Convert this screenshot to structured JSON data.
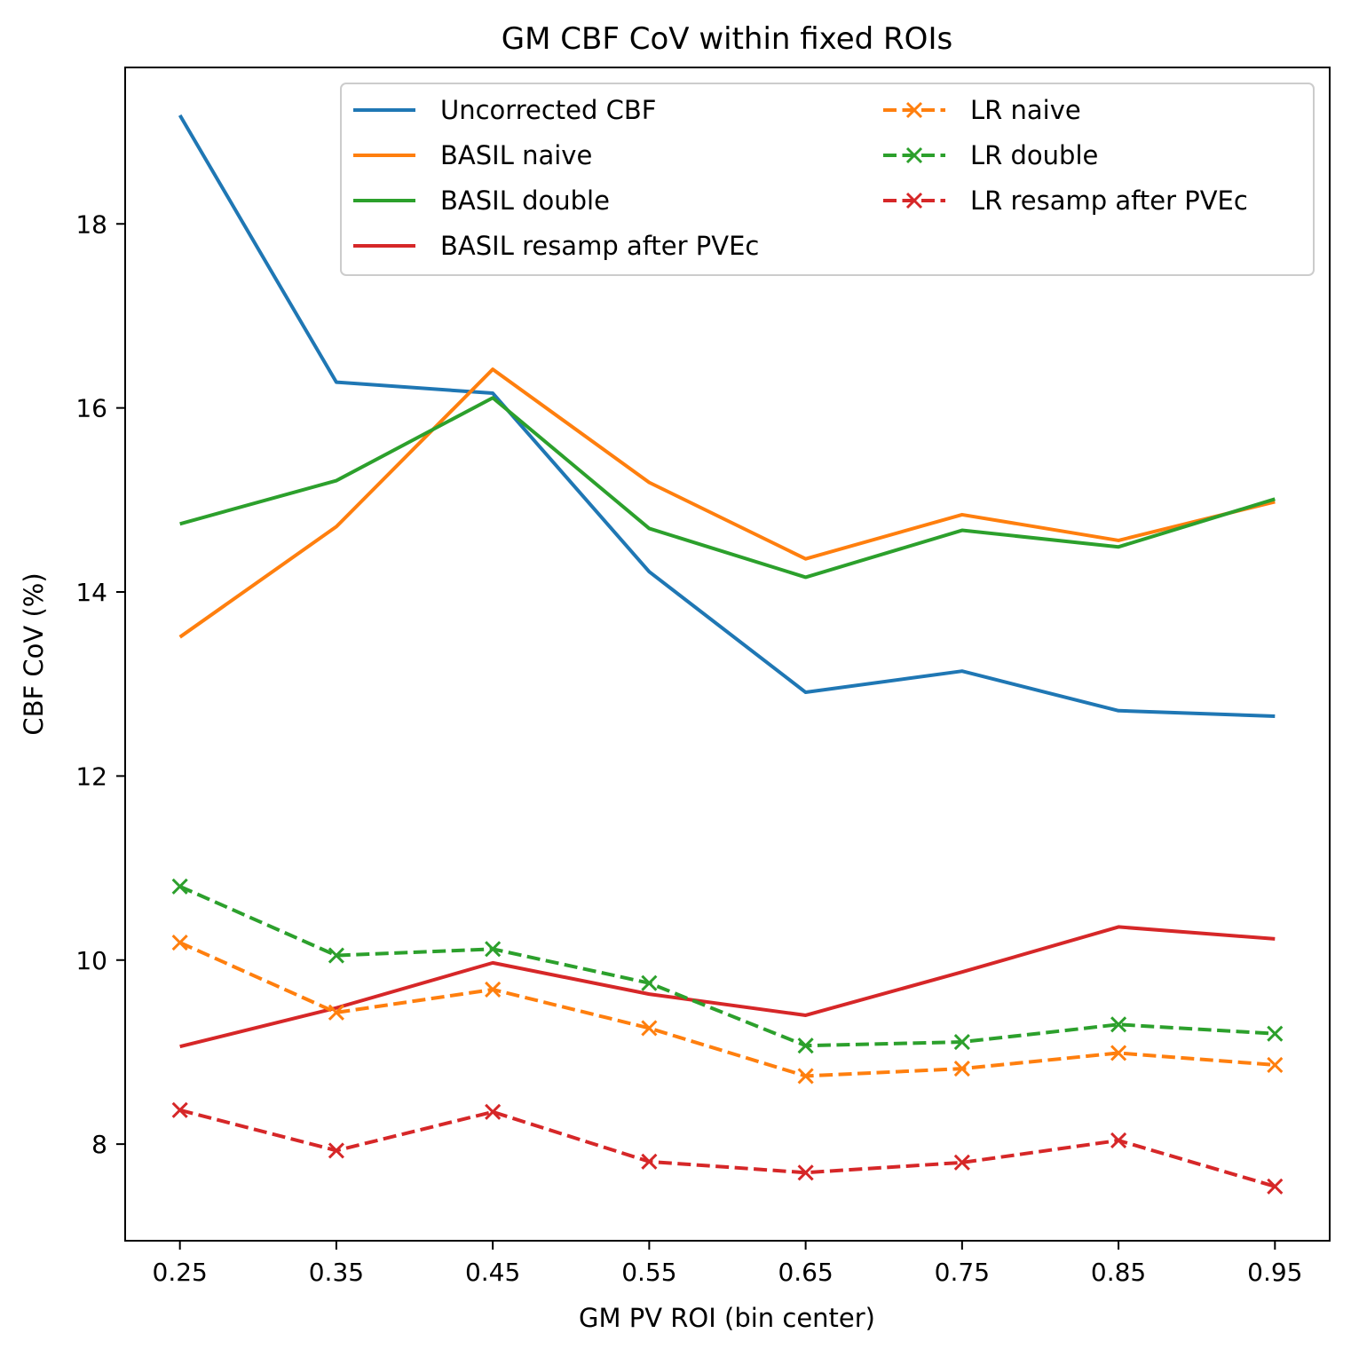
{
  "chart_data": {
    "type": "line",
    "title": "GM CBF CoV within fixed ROIs",
    "xlabel": "GM PV ROI (bin center)",
    "ylabel": "CBF CoV (%)",
    "x": [
      0.25,
      0.35,
      0.45,
      0.55,
      0.65,
      0.75,
      0.85,
      0.95
    ],
    "x_tick_labels": [
      "0.25",
      "0.35",
      "0.45",
      "0.55",
      "0.65",
      "0.75",
      "0.85",
      "0.95"
    ],
    "y_ticks": [
      8,
      10,
      12,
      14,
      16,
      18
    ],
    "y_tick_labels": [
      "8",
      "10",
      "12",
      "14",
      "16",
      "18"
    ],
    "xlim": [
      0.215,
      0.985
    ],
    "ylim": [
      6.95,
      19.7
    ],
    "grid": false,
    "legend_position": "top-right",
    "legend_columns": 2,
    "series": [
      {
        "name": "Uncorrected CBF",
        "color": "#1f77b4",
        "linestyle": "solid",
        "marker": "none",
        "values": [
          19.18,
          16.28,
          16.16,
          14.22,
          12.91,
          13.14,
          12.71,
          12.65
        ]
      },
      {
        "name": "BASIL naive",
        "color": "#ff7f0e",
        "linestyle": "solid",
        "marker": "none",
        "values": [
          13.51,
          14.71,
          16.42,
          15.19,
          14.36,
          14.84,
          14.56,
          14.98
        ]
      },
      {
        "name": "BASIL double",
        "color": "#2ca02c",
        "linestyle": "solid",
        "marker": "none",
        "values": [
          14.74,
          15.21,
          16.11,
          14.69,
          14.16,
          14.67,
          14.49,
          15.01
        ]
      },
      {
        "name": "BASIL resamp after PVEc",
        "color": "#d62728",
        "linestyle": "solid",
        "marker": "none",
        "values": [
          9.06,
          9.48,
          9.97,
          9.63,
          9.4,
          9.87,
          10.36,
          10.23
        ]
      },
      {
        "name": "LR naive",
        "color": "#ff7f0e",
        "linestyle": "dashed",
        "marker": "x",
        "values": [
          10.19,
          9.43,
          9.68,
          9.26,
          8.74,
          8.82,
          8.99,
          8.86
        ]
      },
      {
        "name": "LR double",
        "color": "#2ca02c",
        "linestyle": "dashed",
        "marker": "x",
        "values": [
          10.8,
          10.05,
          10.12,
          9.75,
          9.07,
          9.11,
          9.3,
          9.2
        ]
      },
      {
        "name": "LR resamp after PVEc",
        "color": "#d62728",
        "linestyle": "dashed",
        "marker": "x",
        "values": [
          8.37,
          7.93,
          8.35,
          7.81,
          7.69,
          7.8,
          8.04,
          7.54
        ]
      }
    ]
  }
}
